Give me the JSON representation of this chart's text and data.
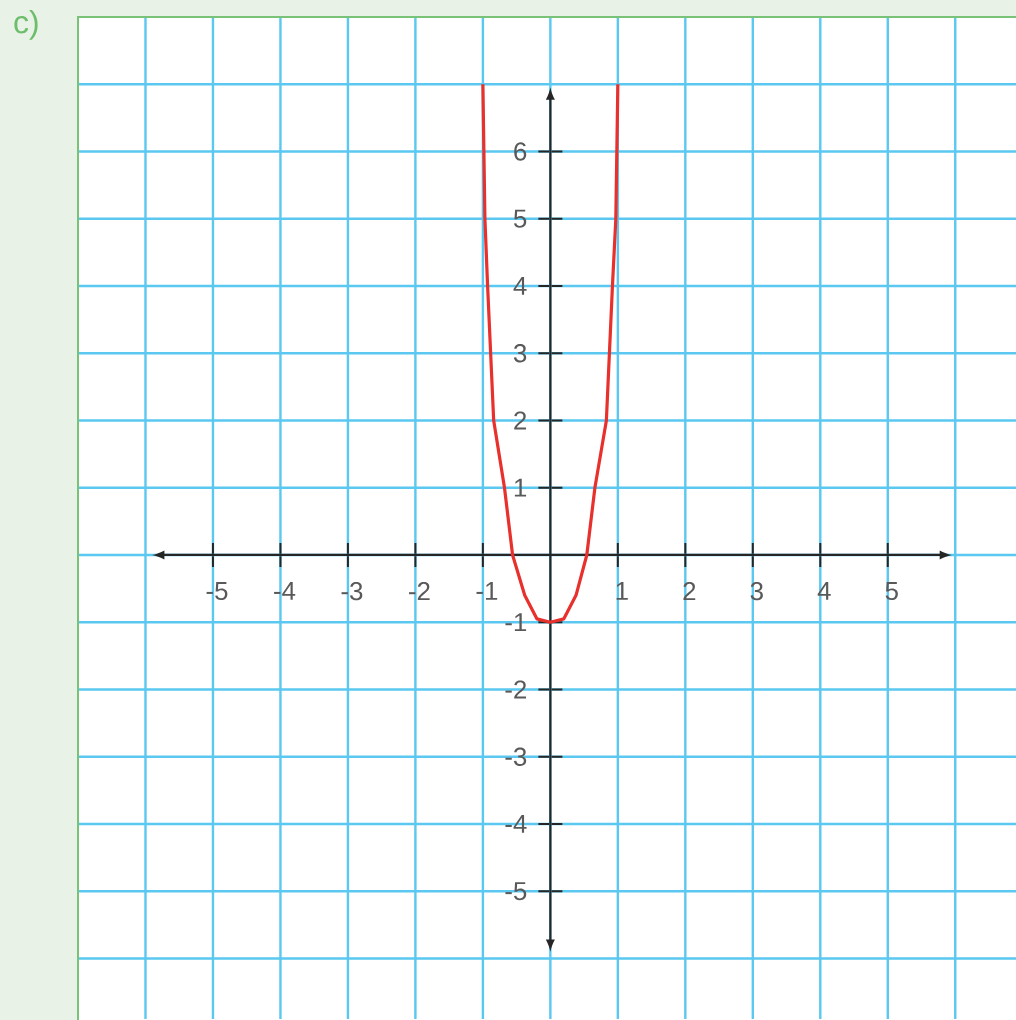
{
  "chart_data": {
    "type": "line",
    "title": "c)",
    "x": [
      -1,
      -0.97,
      -0.93,
      -0.84,
      -0.68,
      -0.56,
      -0.38,
      -0.2,
      0,
      0.2,
      0.38,
      0.54,
      0.66,
      0.83,
      0.92,
      0.97,
      1
    ],
    "series": [
      {
        "color": "#e8302c",
        "values": [
          7,
          5,
          4,
          2,
          1,
          0,
          -0.6,
          -0.95,
          -1,
          -0.95,
          -0.6,
          0,
          1,
          2,
          4,
          5,
          7
        ]
      }
    ],
    "xlim": [
      -7,
      6.9
    ],
    "ylim": [
      -6.9,
      8
    ],
    "xticks": [
      {
        "value": -6,
        "label": null
      },
      -5,
      -4,
      -3,
      -2,
      -1,
      {
        "value": 0,
        "label": null
      },
      1,
      2,
      3,
      4,
      5,
      {
        "value": 6,
        "label": null
      }
    ],
    "yticks": [
      {
        "value": -6,
        "label": null
      },
      -5,
      -4,
      -3,
      -2,
      -1,
      {
        "value": 0,
        "label": null
      },
      1,
      2,
      3,
      4,
      5,
      6,
      {
        "value": 7,
        "label": null
      }
    ],
    "grid": true
  }
}
